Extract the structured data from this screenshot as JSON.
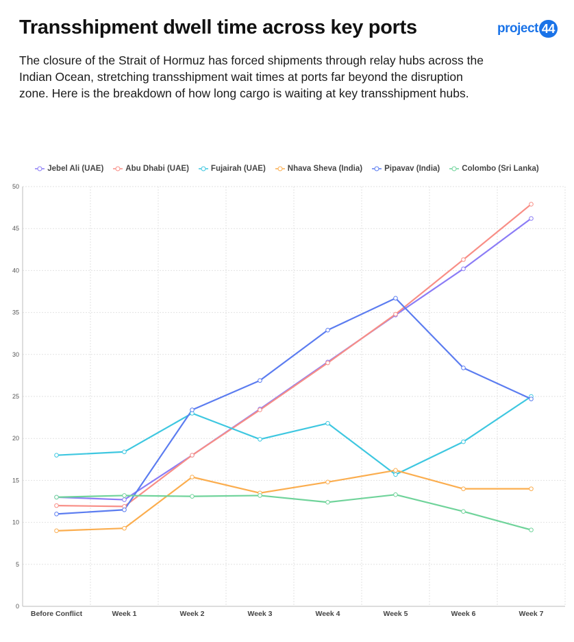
{
  "header": {
    "title": "Transshipment dwell time across key ports",
    "description": "The closure of the Strait of Hormuz has forced shipments through relay hubs across the Indian Ocean, stretching transshipment wait times at ports far beyond the disruption zone. Here is the breakdown of how long cargo is waiting at key transshipment hubs.",
    "logo_text": "project",
    "logo_number": "44",
    "logo_color": "#1a73e8"
  },
  "chart_data": {
    "type": "line",
    "title": "Transshipment dwell time across key ports",
    "xlabel": "",
    "ylabel": "",
    "ylim": [
      0,
      50
    ],
    "yticks": [
      0,
      5,
      10,
      15,
      20,
      25,
      30,
      35,
      40,
      45,
      50
    ],
    "grid": true,
    "legend_position": "top",
    "categories": [
      "Before Conflict",
      "Week 1",
      "Week 2",
      "Week 3",
      "Week 4",
      "Week 5",
      "Week 6",
      "Week 7"
    ],
    "series": [
      {
        "name": "Jebel Ali (UAE)",
        "color": "#8b7cf6",
        "values": [
          13,
          12.7,
          18,
          23.5,
          29.1,
          34.7,
          40.2,
          46.2
        ]
      },
      {
        "name": "Abu Dhabi (UAE)",
        "color": "#f88e86",
        "values": [
          12,
          11.9,
          18,
          23.4,
          29,
          34.8,
          41.3,
          47.9
        ]
      },
      {
        "name": "Fujairah (UAE)",
        "color": "#3ec7e0",
        "values": [
          18,
          18.4,
          23,
          19.9,
          21.8,
          15.7,
          19.6,
          25
        ]
      },
      {
        "name": "Nhava Sheva (India)",
        "color": "#fbad4e",
        "values": [
          9,
          9.3,
          15.4,
          13.5,
          14.8,
          16.2,
          14,
          14
        ]
      },
      {
        "name": "Pipavav (India)",
        "color": "#5b7cf0",
        "values": [
          11,
          11.5,
          23.4,
          26.9,
          32.9,
          36.7,
          28.4,
          24.7
        ]
      },
      {
        "name": "Colombo (Sri Lanka)",
        "color": "#6fd39a",
        "values": [
          13,
          13.2,
          13.1,
          13.2,
          12.4,
          13.3,
          11.3,
          9.1
        ]
      }
    ]
  }
}
